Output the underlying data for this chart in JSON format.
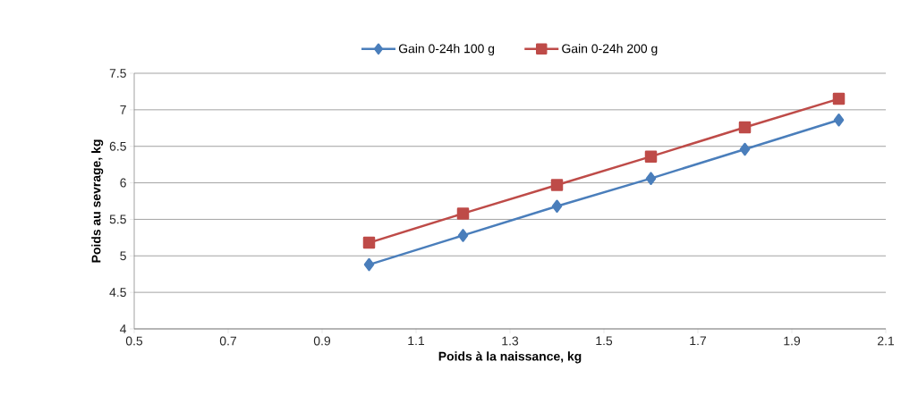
{
  "chart_data": {
    "type": "line",
    "xlabel": "Poids à la naissance, kg",
    "ylabel": "Poids au sevrage, kg",
    "x": [
      1.0,
      1.2,
      1.4,
      1.6,
      1.8,
      2.0
    ],
    "series": [
      {
        "name": "Gain 0-24h 100 g",
        "color": "#4a7ebb",
        "marker": "diamond",
        "values": [
          4.88,
          5.28,
          5.68,
          6.06,
          6.46,
          6.86
        ]
      },
      {
        "name": "Gain 0-24h 200 g",
        "color": "#be4b48",
        "marker": "square",
        "values": [
          5.18,
          5.58,
          5.97,
          6.36,
          6.76,
          7.15
        ]
      }
    ],
    "xlim": [
      0.5,
      2.1
    ],
    "xticks": [
      0.5,
      0.7,
      0.9,
      1.1,
      1.3,
      1.5,
      1.7,
      1.9,
      2.1
    ],
    "ylim": [
      4,
      7.5
    ],
    "yticks": [
      4,
      4.5,
      5,
      5.5,
      6,
      6.5,
      7,
      7.5
    ],
    "grid": "y",
    "legend": "top",
    "line_style": "solid"
  }
}
